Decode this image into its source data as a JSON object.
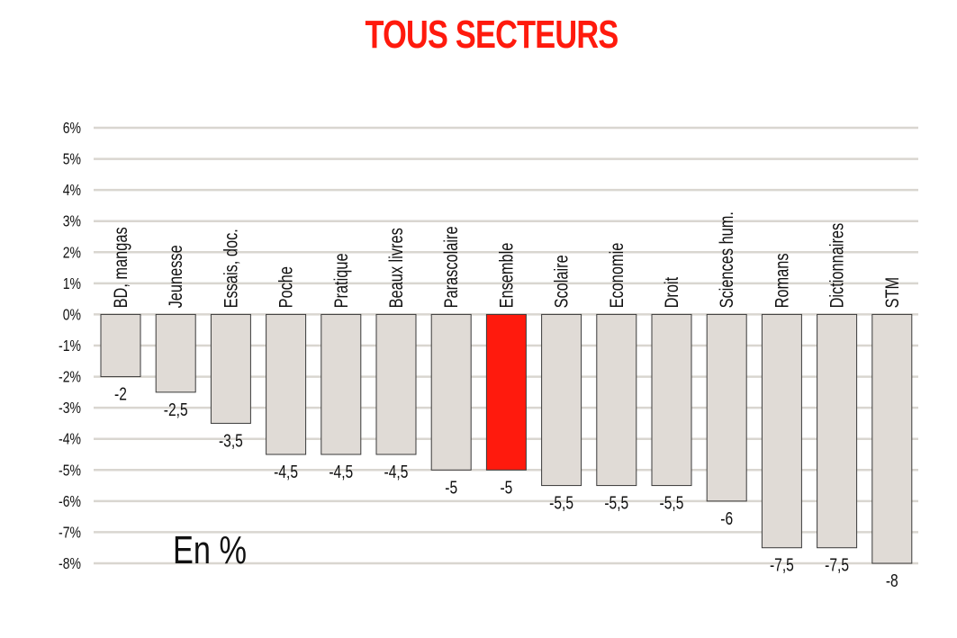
{
  "chart_data": {
    "type": "bar",
    "title": "TOUS SECTEURS",
    "unit_label": "En %",
    "categories": [
      "BD, mangas",
      "Jeunesse",
      "Essais, doc.",
      "Poche",
      "Pratique",
      "Beaux livres",
      "Parascolaire",
      "Ensemble",
      "Scolaire",
      "Economie",
      "Droit",
      "Sciences hum.",
      "Romans",
      "Dictionnaires",
      "STM"
    ],
    "values": [
      -2,
      -2.5,
      -3.5,
      -4.5,
      -4.5,
      -4.5,
      -5,
      -5,
      -5.5,
      -5.5,
      -5.5,
      -6,
      -7.5,
      -7.5,
      -8
    ],
    "value_labels": [
      "-2",
      "-2,5",
      "-3,5",
      "-4,5",
      "-4,5",
      "-4,5",
      "-5",
      "-5",
      "-5,5",
      "-5,5",
      "-5,5",
      "-6",
      "-7,5",
      "-7,5",
      "-8"
    ],
    "yticks": [
      "6%",
      "5%",
      "4%",
      "3%",
      "2%",
      "1%",
      "0%",
      "-1%",
      "-2%",
      "-3%",
      "-4%",
      "-5%",
      "-6%",
      "-7%",
      "-8%"
    ],
    "ylim": [
      -8,
      6
    ],
    "grid": true,
    "highlight_category": "Ensemble",
    "colors": {
      "bar": "#e0dbd6",
      "highlight": "#ff1a0d",
      "title": "#ff1a0d",
      "grid": "#d9d6d0"
    }
  }
}
